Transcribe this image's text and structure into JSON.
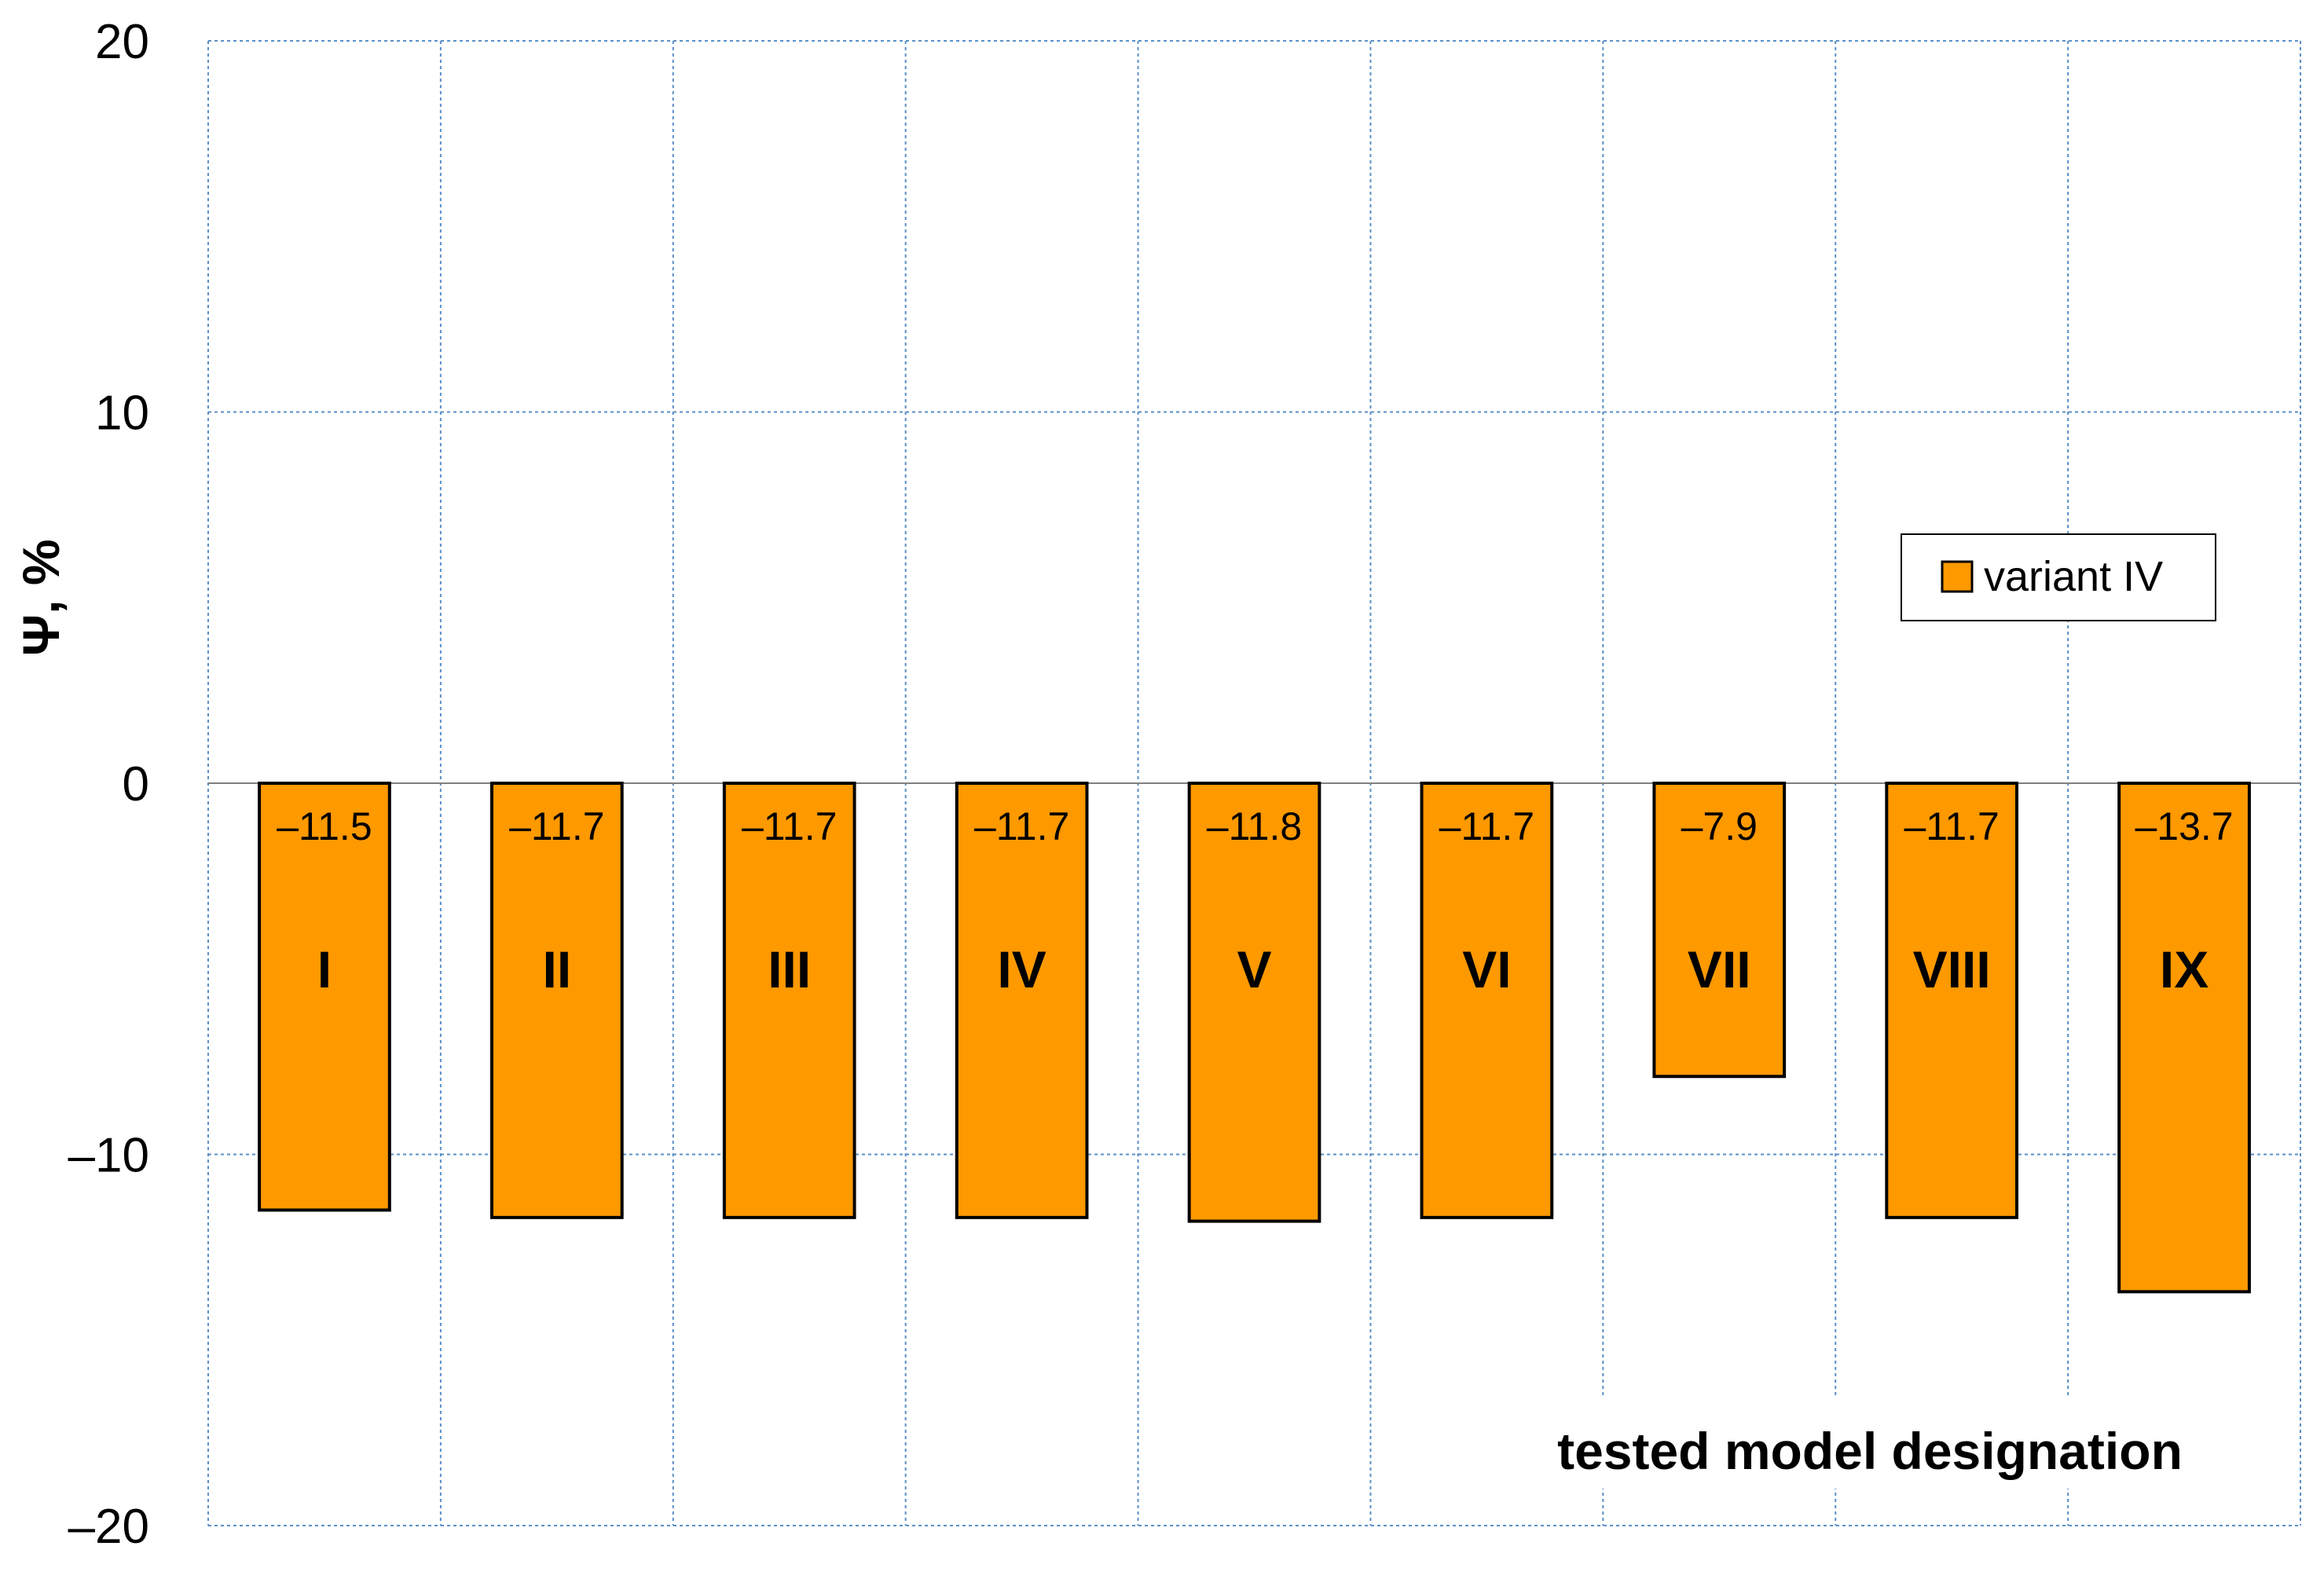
{
  "chart_data": {
    "type": "bar",
    "categories": [
      "I",
      "II",
      "III",
      "IV",
      "V",
      "VI",
      "VII",
      "VIII",
      "IX"
    ],
    "series": [
      {
        "name": "variant IV",
        "values": [
          -11.5,
          -11.7,
          -11.7,
          -11.7,
          -11.8,
          -11.7,
          -7.9,
          -11.7,
          -13.7
        ]
      }
    ],
    "value_labels": [
      "–11.5",
      "–11.7",
      "–11.7",
      "–11.7",
      "–11.8",
      "–11.7",
      "–7.9",
      "–11.7",
      "–13.7"
    ],
    "xlabel": "tested model designation",
    "ylabel": "Ψ, %",
    "ylim": [
      -20,
      20
    ],
    "yticks": [
      20,
      10,
      0,
      -10,
      -20
    ],
    "ytick_labels": [
      "20",
      "10",
      "0",
      "–10",
      "–20"
    ],
    "grid": true,
    "legend_position": "right",
    "colors": {
      "bar_fill": "#FF9900",
      "bar_stroke": "#000000",
      "grid": "#5B8FC7"
    }
  }
}
